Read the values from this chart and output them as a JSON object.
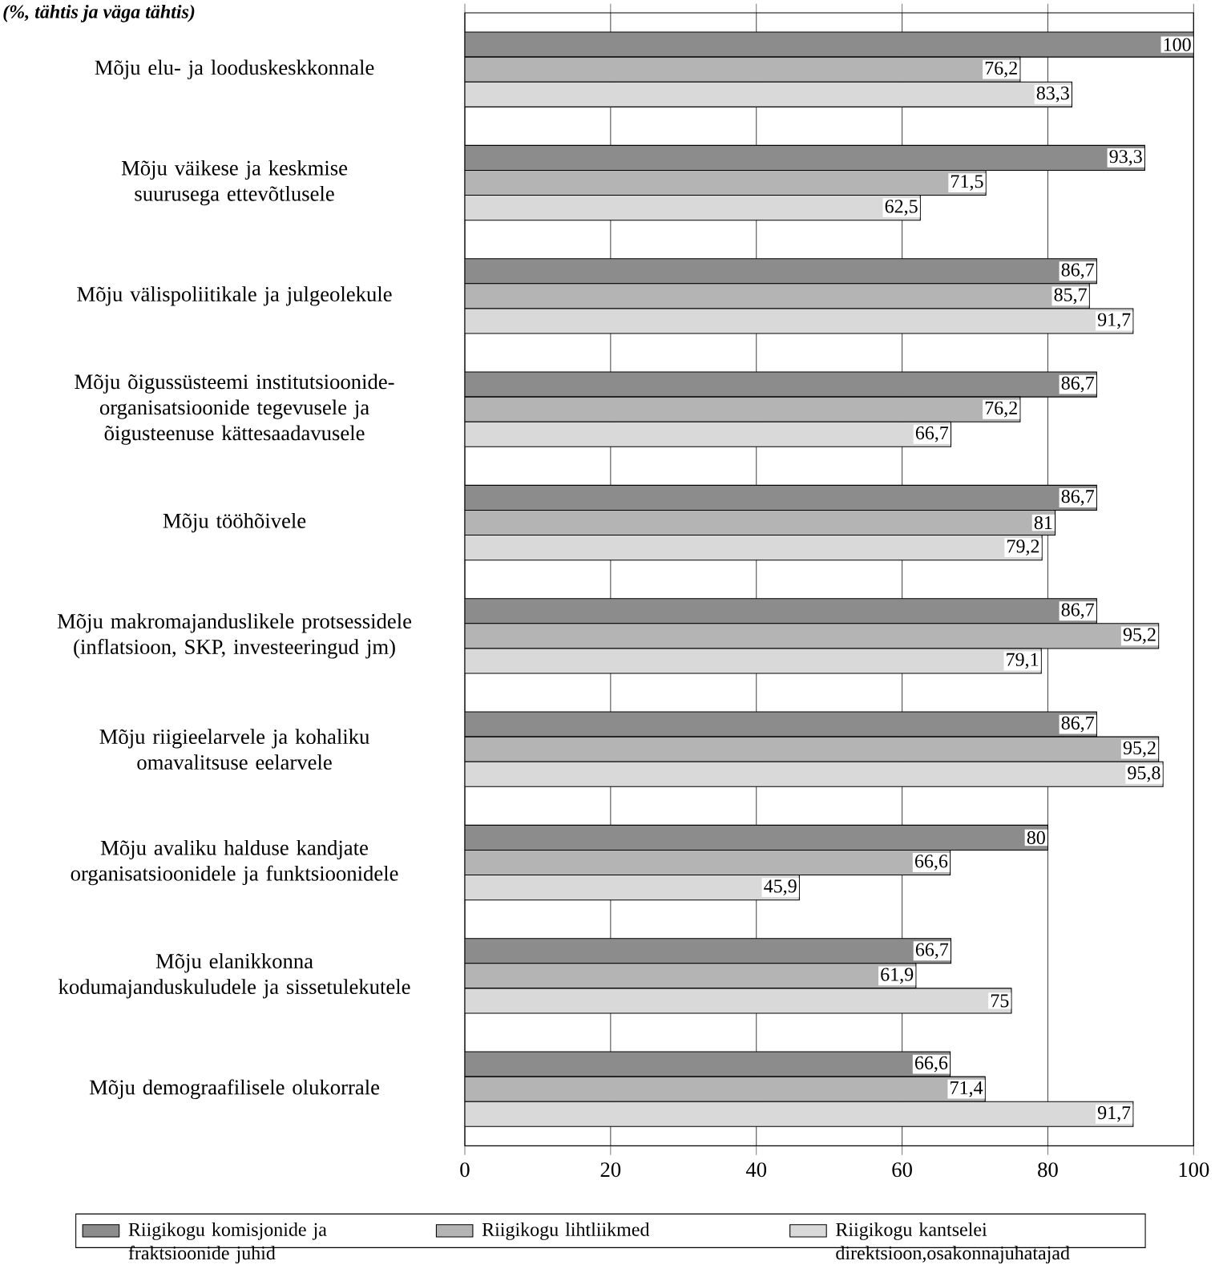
{
  "chart_data": {
    "type": "bar",
    "orientation": "horizontal",
    "title": "(%, tähtis ja väga tähtis)",
    "categories": [
      "Mõju elu- ja looduskeskkonnale",
      "Mõju väikese ja keskmise suurusega ettevõtlusele",
      "Mõju välispoliitikale ja julgeolekule",
      "Mõju õigussüsteemi institutsioonide-organisatsioonide tegevusele ja õigusteenuse kättesaadavusele",
      "Mõju tööhõivele",
      "Mõju makromajanduslikele protsessidele (inflatsioon, SKP, investeeringud jm)",
      "Mõju riigieelarvele ja kohaliku omavalitsuse eelarvele",
      "Mõju avaliku halduse kandjate organisatsioonidele ja funktsioonidele",
      "Mõju elanikkonna kodumajanduskuludele ja sissetulekutele",
      "Mõju demograafilisele olukorrale"
    ],
    "series": [
      {
        "name": "Riigikogu komisjonide ja fraktsioonide juhid",
        "color": "#8c8c8c",
        "values": [
          100,
          93.3,
          86.7,
          86.7,
          86.7,
          86.7,
          86.7,
          80,
          66.7,
          66.6
        ],
        "value_labels": [
          "100",
          "93,3",
          "86,7",
          "86,7",
          "86,7",
          "86,7",
          "86,7",
          "80",
          "66,7",
          "66,6"
        ]
      },
      {
        "name": "Riigikogu lihtliikmed",
        "color": "#b4b4b4",
        "values": [
          76.2,
          71.5,
          85.7,
          76.2,
          81,
          95.2,
          95.2,
          66.6,
          61.9,
          71.4
        ],
        "value_labels": [
          "76,2",
          "71,5",
          "85,7",
          "76,2",
          "81",
          "95,2",
          "95,2",
          "66,6",
          "61,9",
          "71,4"
        ]
      },
      {
        "name": "Riigikogu kantselei direktsioon,osakonnajuhatajad",
        "color": "#d9d9d9",
        "values": [
          83.3,
          62.5,
          91.7,
          66.7,
          79.2,
          79.1,
          95.8,
          45.9,
          75,
          91.7
        ],
        "value_labels": [
          "83,3",
          "62,5",
          "91,7",
          "66,7",
          "79,2",
          "79,1",
          "95,8",
          "45,9",
          "75",
          "91,7"
        ]
      }
    ],
    "xlim": [
      0,
      100
    ],
    "xticks": [
      0,
      20,
      40,
      60,
      80,
      100
    ],
    "grid": "x",
    "legend": "bottom"
  }
}
